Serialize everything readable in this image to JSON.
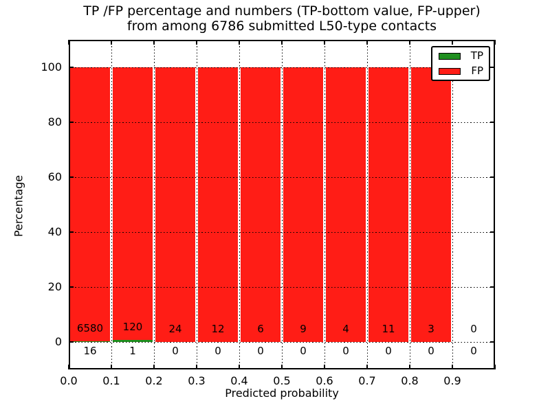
{
  "chart_data": {
    "type": "bar",
    "stacked": true,
    "title_line1": "TP /FP percentage and numbers (TP-bottom value, FP-upper)",
    "title_line2": "from among 6786 submitted L50-type contacts",
    "xlabel": "Predicted probability",
    "ylabel": "Percentage",
    "total_submitted_contacts": 6786,
    "xlim": [
      0.0,
      1.0
    ],
    "ylim": [
      -10,
      110
    ],
    "bin_width": 0.1,
    "bin_starts": [
      0.0,
      0.1,
      0.2,
      0.3,
      0.4,
      0.5,
      0.6,
      0.7,
      0.8,
      0.9
    ],
    "x_tick_positions": [
      0.0,
      0.1,
      0.2,
      0.3,
      0.4,
      0.5,
      0.6,
      0.7,
      0.8,
      0.9,
      1.0
    ],
    "x_tick_labels": [
      "0.0",
      "0.1",
      "0.2",
      "0.3",
      "0.4",
      "0.5",
      "0.6",
      "0.7",
      "0.8",
      "0.9",
      ""
    ],
    "y_tick_values": [
      0,
      20,
      40,
      60,
      80,
      100
    ],
    "y_tick_labels": [
      "0",
      "20",
      "40",
      "60",
      "80",
      "100"
    ],
    "series": [
      {
        "name": "TP",
        "color": "#1f8f1f",
        "counts": [
          16,
          1,
          0,
          0,
          0,
          0,
          0,
          0,
          0,
          0
        ]
      },
      {
        "name": "FP",
        "color": "#ff1d16",
        "counts": [
          6580,
          120,
          24,
          12,
          6,
          9,
          4,
          11,
          3,
          0
        ]
      }
    ],
    "bar_value_labels": {
      "fp_upper": [
        "6580",
        "120",
        "24",
        "12",
        "6",
        "9",
        "4",
        "11",
        "3",
        "0"
      ],
      "tp_bottom": [
        "16",
        "1",
        "0",
        "0",
        "0",
        "0",
        "0",
        "0",
        "0",
        "0"
      ]
    },
    "legend": {
      "position": "upper right",
      "entries": [
        "TP",
        "FP"
      ]
    },
    "grid": {
      "style": "dotted",
      "color": "#000000"
    },
    "colors": {
      "tp": "#1f8f1f",
      "fp": "#ff1d16",
      "frame": "#000000",
      "text": "#000000",
      "background": "#ffffff"
    }
  }
}
